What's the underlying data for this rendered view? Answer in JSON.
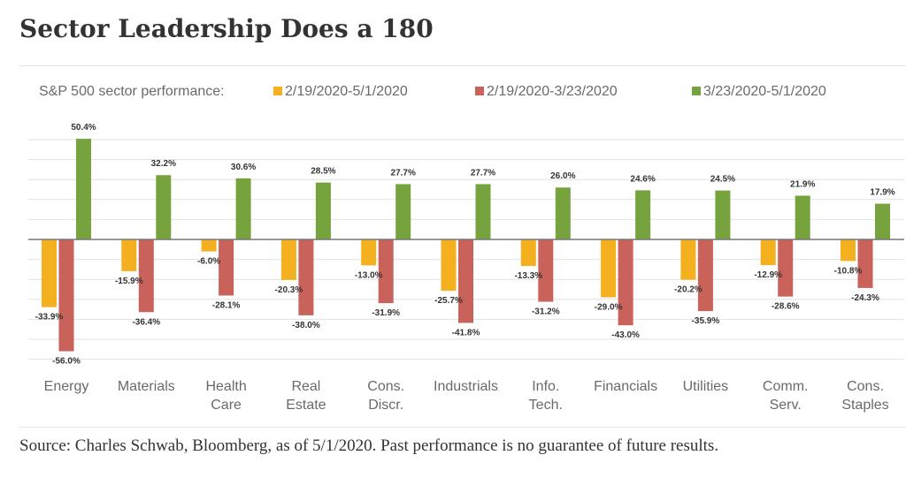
{
  "page": {
    "title": "Sector Leadership Does a 180",
    "source": "Source: Charles Schwab, Bloomberg, as of 5/1/2020. Past performance is no guarantee of future results."
  },
  "chart_data": {
    "type": "bar",
    "title": "Sector Leadership Does a 180",
    "legend_title": "S&P 500 sector  performance:",
    "legend_placement": "top",
    "categories": [
      [
        "Energy"
      ],
      [
        "Materials"
      ],
      [
        "Health",
        "Care"
      ],
      [
        "Real",
        "Estate"
      ],
      [
        "Cons.",
        "Discr."
      ],
      [
        "Industrials"
      ],
      [
        "Info.",
        "Tech."
      ],
      [
        "Financials"
      ],
      [
        "Utilities"
      ],
      [
        "Comm.",
        "Serv."
      ],
      [
        "Cons.",
        "Staples"
      ]
    ],
    "series": [
      {
        "name": "2/19/2020-5/1/2020",
        "color": "#f4b01f",
        "values": [
          -33.9,
          -15.9,
          -6.0,
          -20.3,
          -13.0,
          -25.7,
          -13.3,
          -29.0,
          -20.2,
          -12.9,
          -10.8
        ],
        "labels": [
          "-33.9%",
          "-15.9%",
          "-6.0%",
          "-20.3%",
          "-13.0%",
          "-25.7%",
          "-13.3%",
          "-29.0%",
          "-20.2%",
          "-12.9%",
          "-10.8%"
        ]
      },
      {
        "name": "2/19/2020-3/23/2020",
        "color": "#c9625b",
        "values": [
          -56.0,
          -36.4,
          -28.1,
          -38.0,
          -31.9,
          -41.8,
          -31.2,
          -43.0,
          -35.9,
          -28.6,
          -24.3
        ],
        "labels": [
          "-56.0%",
          "-36.4%",
          "-28.1%",
          "-38.0%",
          "-31.9%",
          "-41.8%",
          "-31.2%",
          "-43.0%",
          "-35.9%",
          "-28.6%",
          "-24.3%"
        ]
      },
      {
        "name": "3/23/2020-5/1/2020",
        "color": "#76a33e",
        "values": [
          50.4,
          32.2,
          30.6,
          28.5,
          27.7,
          27.7,
          26.0,
          24.6,
          24.5,
          21.9,
          17.9
        ],
        "labels": [
          "50.4%",
          "32.2%",
          "30.6%",
          "28.5%",
          "27.7%",
          "27.7%",
          "26.0%",
          "24.6%",
          "24.5%",
          "21.9%",
          "17.9%"
        ]
      }
    ],
    "ylim": [
      -60,
      55
    ],
    "gridlines": true,
    "grid_step": 10
  }
}
